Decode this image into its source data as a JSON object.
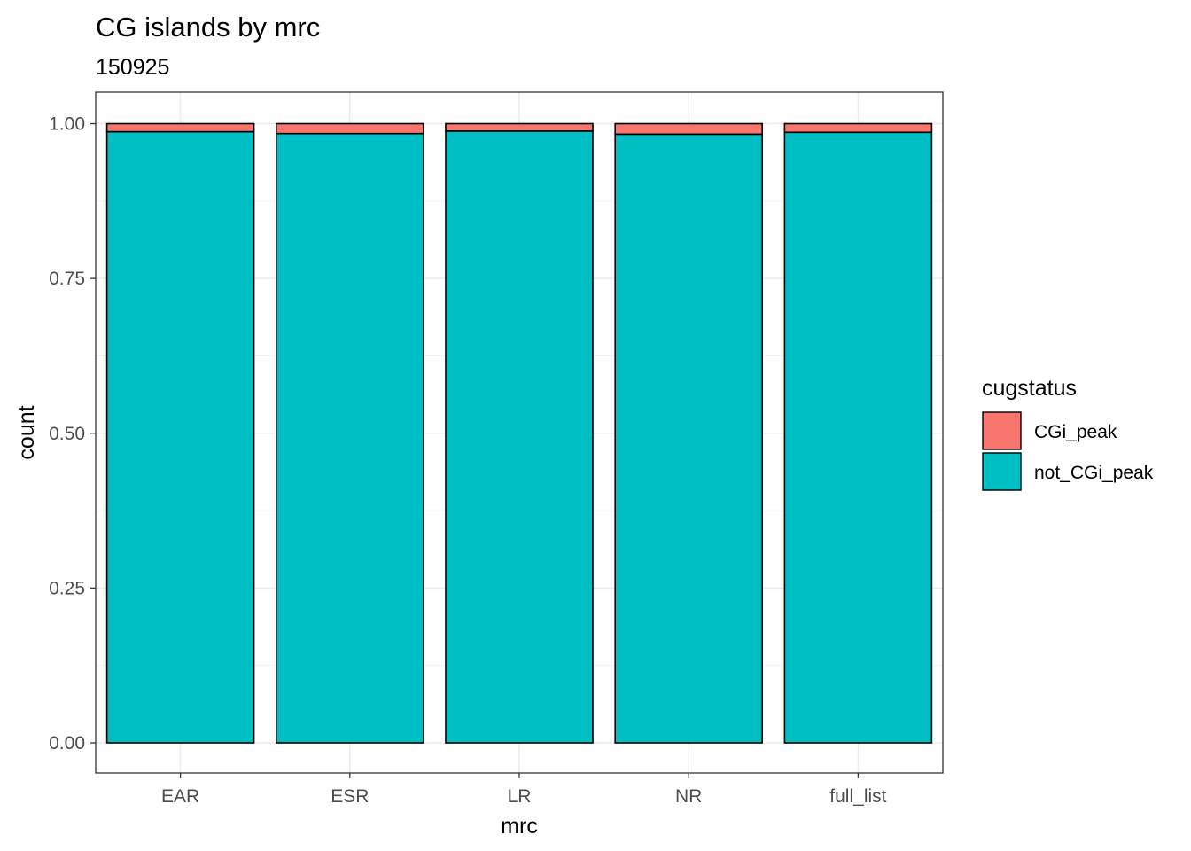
{
  "chart_data": {
    "type": "bar",
    "stacked": true,
    "title": "CG islands by mrc",
    "subtitle": "150925",
    "xlabel": "mrc",
    "ylabel": "count",
    "categories": [
      "EAR",
      "ESR",
      "LR",
      "NR",
      "full_list"
    ],
    "yticks": [
      "0.00",
      "0.25",
      "0.50",
      "0.75",
      "1.00"
    ],
    "ylim": [
      0,
      1
    ],
    "grid": true,
    "legend": {
      "title": "cugstatus",
      "position": "right"
    },
    "series": [
      {
        "name": "not_CGi_peak",
        "color": "#00BFC4",
        "values": [
          0.987,
          0.984,
          0.988,
          0.983,
          0.986
        ]
      },
      {
        "name": "CGi_peak",
        "color": "#F8766D",
        "values": [
          0.013,
          0.016,
          0.012,
          0.017,
          0.014
        ]
      }
    ]
  }
}
